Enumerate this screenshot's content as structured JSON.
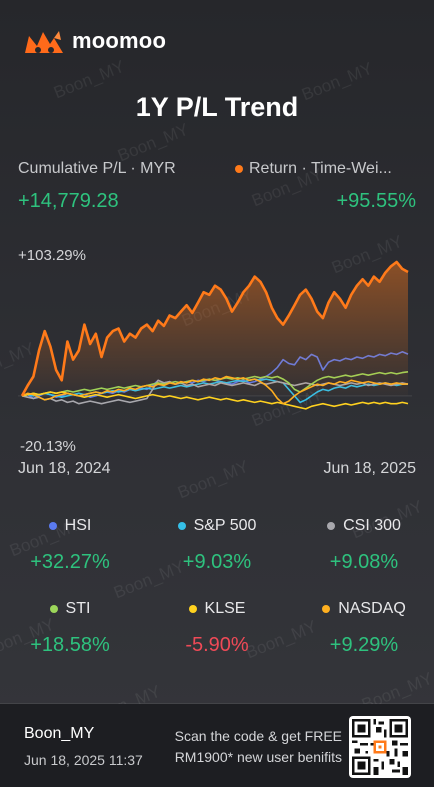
{
  "brand": {
    "name": "moomoo"
  },
  "watermark": "Boon_MY",
  "title": "1Y P/L Trend",
  "summary": {
    "cumulative_label": "Cumulative P/L · MYR",
    "cumulative_value": "+14,779.28",
    "return_label": "Return · Time-Wei...",
    "return_value": "+95.55%",
    "return_color": "#ff7a1a"
  },
  "chart_data": {
    "type": "line",
    "y_max_label": "+103.29%",
    "y_min_label": "-20.13%",
    "ylim": [
      -20.13,
      103.29
    ],
    "x_start_label": "Jun 18, 2024",
    "x_end_label": "Jun 18, 2025",
    "series": [
      {
        "name": "Return",
        "color": "#ff7a1a",
        "area": true,
        "values": [
          0,
          8,
          15,
          35,
          50,
          38,
          20,
          12,
          42,
          28,
          35,
          55,
          40,
          48,
          30,
          45,
          50,
          52,
          42,
          48,
          45,
          52,
          55,
          50,
          58,
          54,
          62,
          60,
          65,
          70,
          64,
          72,
          80,
          78,
          85,
          82,
          75,
          65,
          72,
          80,
          85,
          92,
          88,
          80,
          68,
          60,
          55,
          62,
          70,
          78,
          82,
          75,
          65,
          60,
          72,
          80,
          75,
          68,
          78,
          85,
          90,
          85,
          92,
          88,
          95,
          100,
          103.29,
          98,
          95.55
        ]
      },
      {
        "name": "HSI",
        "color": "#5b7bf0",
        "values": [
          0,
          1,
          -2,
          0,
          2,
          1,
          -1,
          0,
          2,
          1,
          0,
          1,
          -1,
          0,
          2,
          3,
          2,
          4,
          3,
          5,
          4,
          6,
          5,
          8,
          12,
          10,
          11,
          9,
          10,
          11,
          10,
          12,
          11,
          13,
          12,
          11,
          10,
          9,
          11,
          12,
          10,
          11,
          13,
          15,
          18,
          22,
          28,
          25,
          24,
          30,
          28,
          32,
          30,
          20,
          26,
          28,
          27,
          29,
          28,
          30,
          29,
          31,
          30,
          32,
          31,
          33,
          32,
          34,
          32.27
        ]
      },
      {
        "name": "S&P 500",
        "color": "#35c0e8",
        "values": [
          0,
          1,
          0,
          1,
          2,
          1,
          0,
          -1,
          0,
          1,
          2,
          1,
          2,
          3,
          2,
          3,
          4,
          3,
          4,
          5,
          4,
          5,
          6,
          5,
          6,
          7,
          6,
          7,
          8,
          7,
          8,
          9,
          10,
          9,
          10,
          11,
          10,
          11,
          12,
          11,
          12,
          13,
          12,
          13,
          12,
          11,
          10,
          5,
          0,
          -5,
          -3,
          0,
          3,
          5,
          4,
          6,
          7,
          6,
          8,
          7,
          8,
          9,
          8,
          9,
          10,
          9,
          8,
          9,
          9.03
        ]
      },
      {
        "name": "CSI 300",
        "color": "#a8a8ad",
        "values": [
          0,
          -1,
          -2,
          -1,
          -3,
          -2,
          -4,
          -3,
          -5,
          -4,
          -6,
          -5,
          -4,
          -5,
          -6,
          -5,
          -4,
          -3,
          -4,
          -5,
          -4,
          -3,
          -2,
          5,
          12,
          10,
          11,
          9,
          10,
          8,
          9,
          7,
          8,
          9,
          8,
          10,
          9,
          8,
          9,
          10,
          9,
          8,
          10,
          9,
          10,
          11,
          10,
          9,
          8,
          9,
          10,
          9,
          8,
          9,
          10,
          9,
          8,
          9,
          10,
          9,
          10,
          8,
          9,
          10,
          9,
          8,
          9,
          10,
          9.08
        ]
      },
      {
        "name": "STI",
        "color": "#9cd65a",
        "values": [
          0,
          1,
          2,
          1,
          2,
          3,
          2,
          3,
          4,
          3,
          4,
          5,
          4,
          5,
          6,
          5,
          6,
          7,
          6,
          7,
          8,
          7,
          8,
          9,
          10,
          9,
          10,
          11,
          10,
          11,
          12,
          11,
          12,
          13,
          12,
          13,
          14,
          13,
          14,
          13,
          14,
          15,
          14,
          15,
          14,
          15,
          13,
          10,
          5,
          3,
          6,
          9,
          12,
          14,
          15,
          14,
          15,
          16,
          15,
          16,
          17,
          16,
          17,
          18,
          17,
          18,
          17,
          18,
          18.58
        ]
      },
      {
        "name": "KLSE",
        "color": "#ffd21f",
        "values": [
          0,
          1,
          2,
          1,
          2,
          3,
          2,
          3,
          2,
          1,
          0,
          -1,
          0,
          1,
          0,
          -1,
          0,
          1,
          0,
          -1,
          -2,
          -1,
          0,
          1,
          0,
          -1,
          0,
          -1,
          -2,
          -1,
          -2,
          -3,
          -2,
          -1,
          -2,
          -3,
          -2,
          -3,
          -4,
          -3,
          -4,
          -5,
          -4,
          -5,
          -6,
          -5,
          -6,
          -7,
          -8,
          -9,
          -10,
          -8,
          -7,
          -6,
          -7,
          -8,
          -7,
          -6,
          -7,
          -6,
          -5,
          -6,
          -5,
          -6,
          -5,
          -6,
          -6,
          -5,
          -5.9
        ]
      },
      {
        "name": "NASDAQ",
        "color": "#ffb020",
        "values": [
          0,
          2,
          1,
          -1,
          -3,
          -2,
          0,
          1,
          2,
          1,
          0,
          1,
          2,
          3,
          2,
          4,
          3,
          5,
          4,
          6,
          5,
          7,
          8,
          7,
          9,
          8,
          10,
          9,
          11,
          10,
          12,
          11,
          13,
          12,
          14,
          13,
          15,
          14,
          13,
          14,
          12,
          13,
          11,
          8,
          4,
          -2,
          -6,
          -4,
          0,
          3,
          5,
          7,
          9,
          8,
          10,
          9,
          11,
          10,
          12,
          11,
          10,
          11,
          10,
          9,
          10,
          9,
          10,
          9,
          9.29
        ]
      }
    ]
  },
  "benchmarks": [
    {
      "name": "HSI",
      "value": "+32.27%",
      "color": "#5b7bf0",
      "trend": "pos"
    },
    {
      "name": "S&P 500",
      "value": "+9.03%",
      "color": "#35c0e8",
      "trend": "pos"
    },
    {
      "name": "CSI 300",
      "value": "+9.08%",
      "color": "#a8a8ad",
      "trend": "pos"
    },
    {
      "name": "STI",
      "value": "+18.58%",
      "color": "#9cd65a",
      "trend": "pos"
    },
    {
      "name": "KLSE",
      "value": "-5.90%",
      "color": "#ffd21f",
      "trend": "neg"
    },
    {
      "name": "NASDAQ",
      "value": "+9.29%",
      "color": "#ffb020",
      "trend": "pos"
    }
  ],
  "footer": {
    "username": "Boon_MY",
    "timestamp": "Jun 18, 2025 11:37",
    "promo_line1": "Scan the code & get FREE",
    "promo_line2": "RM1900* new user benifits",
    "qr_icon": "qr-code-icon"
  }
}
